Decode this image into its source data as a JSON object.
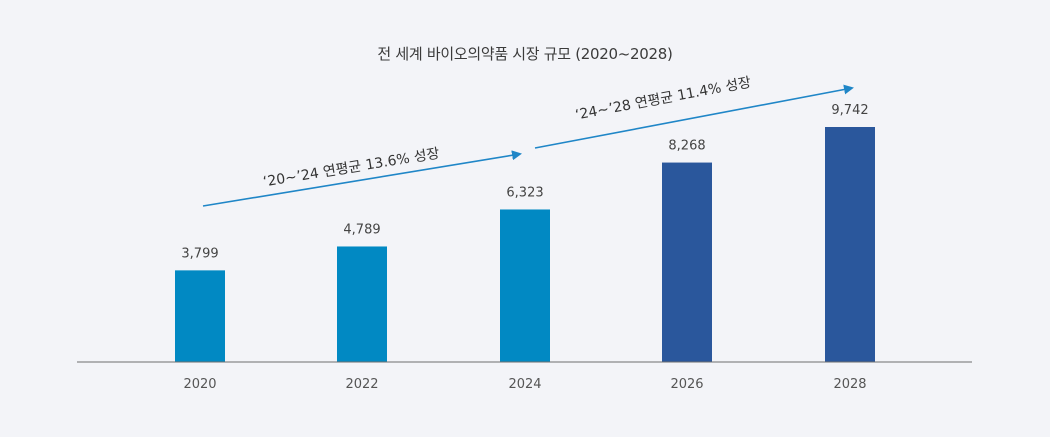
{
  "chart_data": {
    "type": "bar",
    "title": "전 세계 바이오의약품 시장 규모 (2020~2028)",
    "categories": [
      "2020",
      "2022",
      "2024",
      "2026",
      "2028"
    ],
    "values": [
      3799,
      4789,
      6323,
      8268,
      9742
    ],
    "value_labels": [
      "3,799",
      "4,789",
      "6,323",
      "8,268",
      "9,742"
    ],
    "ylim": [
      0,
      11000
    ],
    "grid": false,
    "bar_colors": [
      "#0189c3",
      "#0189c3",
      "#0189c3",
      "#2a579c",
      "#2a579c"
    ],
    "annotations": [
      {
        "text": "‘20~’24 연평균 13.6% 성장",
        "color": "#1f86c7"
      },
      {
        "text": "‘24~’28 연평균 11.4% 성장",
        "color": "#1f86c7"
      }
    ],
    "axis_color": "#6e6e6e"
  }
}
